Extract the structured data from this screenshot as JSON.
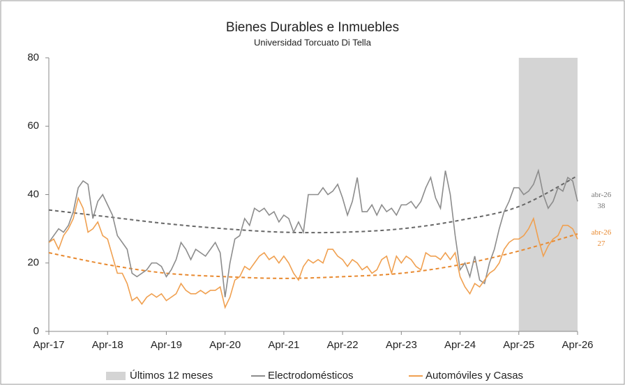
{
  "chart_data": {
    "type": "line",
    "title": "Bienes Durables e Inmuebles",
    "subtitle": "Universidad Torcuato Di Tella",
    "categories": [
      "Apr-17",
      null,
      null,
      null,
      null,
      null,
      null,
      null,
      null,
      null,
      null,
      null,
      "Apr-18",
      null,
      null,
      null,
      null,
      null,
      null,
      null,
      null,
      null,
      null,
      null,
      "Apr-19",
      null,
      null,
      null,
      null,
      null,
      null,
      null,
      null,
      null,
      null,
      null,
      "Apr-20",
      null,
      null,
      null,
      null,
      null,
      null,
      null,
      null,
      null,
      null,
      null,
      "Apr-21",
      null,
      null,
      null,
      null,
      null,
      null,
      null,
      null,
      null,
      null,
      null,
      "Apr-22",
      null,
      null,
      null,
      null,
      null,
      null,
      null,
      null,
      null,
      null,
      null,
      "Apr-23",
      null,
      null,
      null,
      null,
      null,
      null,
      null,
      null,
      null,
      null,
      null,
      "Apr-24",
      null,
      null,
      null,
      null,
      null,
      null,
      null,
      null,
      null,
      null,
      null,
      "Apr-25",
      null,
      null,
      null,
      null,
      null,
      null,
      null,
      null,
      null,
      null,
      null,
      "Apr-26"
    ],
    "series": [
      {
        "name": "Electrodomésticos",
        "color": "#8c8c8c",
        "values": [
          26,
          28,
          30,
          29,
          31,
          35,
          42,
          44,
          43,
          33,
          38,
          40,
          37,
          34,
          28,
          26,
          24,
          17,
          16,
          17,
          18,
          20,
          20,
          19,
          16,
          18,
          21,
          26,
          24,
          21,
          24,
          23,
          22,
          24,
          26,
          23,
          10,
          20,
          27,
          28,
          33,
          31,
          36,
          35,
          36,
          34,
          35,
          32,
          34,
          33,
          29,
          32,
          29,
          40,
          40,
          40,
          42,
          40,
          41,
          43,
          39,
          34,
          38,
          45,
          35,
          35,
          37,
          34,
          37,
          35,
          36,
          34,
          37,
          37,
          38,
          36,
          38,
          42,
          45,
          39,
          36,
          47,
          40,
          28,
          18,
          20,
          16,
          22,
          15,
          14,
          20,
          24,
          30,
          35,
          38,
          42,
          42,
          40,
          41,
          43,
          47,
          40,
          36,
          38,
          42,
          41,
          45,
          44,
          38
        ]
      },
      {
        "name": "Automóviles y Casas",
        "color": "#f0a050",
        "values": [
          26,
          27,
          24,
          28,
          30,
          33,
          39,
          36,
          29,
          30,
          32,
          28,
          27,
          22,
          17,
          17,
          14,
          9,
          10,
          8,
          10,
          11,
          10,
          11,
          9,
          10,
          11,
          14,
          12,
          11,
          11,
          12,
          11,
          12,
          12,
          13,
          7,
          10,
          15,
          16,
          19,
          18,
          20,
          22,
          23,
          21,
          22,
          20,
          22,
          20,
          17,
          15,
          19,
          21,
          20,
          21,
          20,
          24,
          24,
          22,
          21,
          19,
          21,
          20,
          18,
          19,
          17,
          18,
          21,
          22,
          17,
          22,
          20,
          22,
          21,
          19,
          18,
          23,
          22,
          22,
          21,
          23,
          21,
          23,
          16,
          13,
          11,
          14,
          13,
          15,
          17,
          18,
          20,
          24,
          26,
          27,
          27,
          28,
          30,
          33,
          27,
          22,
          25,
          27,
          28,
          31,
          31,
          30,
          27
        ]
      }
    ],
    "trend_lines": [
      {
        "color": "#666666",
        "values": [
          35.5,
          33.5,
          31.5,
          30,
          29,
          29,
          30,
          32.5,
          36.5,
          45.5
        ]
      },
      {
        "color": "#e8892f",
        "values": [
          23,
          19.5,
          17,
          16,
          15.5,
          16,
          17,
          19.5,
          23.5,
          28.5
        ]
      }
    ],
    "highlight": {
      "name": "Últimos 12 meses",
      "color": "#d4d4d4",
      "months": 12
    },
    "annotations": [
      {
        "label": "abr-26",
        "value": 38,
        "color": "#777777"
      },
      {
        "label": "abr-26",
        "value": 27,
        "color": "#e8892f"
      }
    ],
    "ylim": [
      0,
      80
    ],
    "yticks": [
      0,
      20,
      40,
      60,
      80
    ]
  }
}
